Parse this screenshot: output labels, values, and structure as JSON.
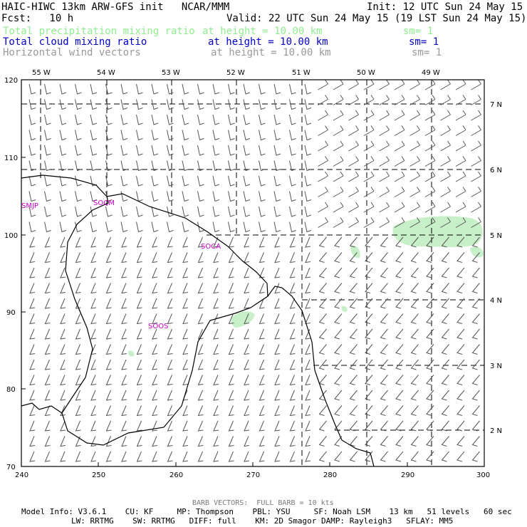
{
  "header": {
    "title": "HAIC-HIWC 13km ARW-GFS init   NCAR/MMM",
    "init": "Init: 12 UTC Sun 24 May 15",
    "fcst": "Fcst:   10 h",
    "valid": "Valid: 22 UTC Sun 24 May 15 (19 LST Sun 24 May 15)",
    "fields": [
      {
        "name": "Total precipitation mixing ratio",
        "height": "at height = 10.00 km",
        "sm": "sm= 1",
        "color": "#90ee90"
      },
      {
        "name": "Total cloud mixing ratio",
        "height": "at height = 10.00 km",
        "sm": "sm= 1",
        "color": "#0000cc"
      },
      {
        "name": "Horizontal wind vectors",
        "height": "at height = 10.00 km",
        "sm": "sm= 1",
        "color": "#999999"
      }
    ]
  },
  "map": {
    "grid_x_labels": [
      "240",
      "250",
      "260",
      "270",
      "280",
      "290",
      "300"
    ],
    "grid_y_labels": [
      "70",
      "80",
      "90",
      "100",
      "110",
      "120"
    ],
    "lon_labels": [
      "55 W",
      "54 W",
      "53 W",
      "52 W",
      "51 W",
      "50 W",
      "49 W"
    ],
    "lat_labels": [
      "2 N",
      "3 N",
      "4 N",
      "5 N",
      "6 N",
      "7 N"
    ],
    "stations": [
      "SMJP",
      "SOCM",
      "SOCA",
      "SOOS"
    ],
    "precip_color": "#c8f0c8",
    "coast_color": "#000000"
  },
  "footer": {
    "barb_note": "BARB VECTORS:  FULL BARB = 10 kts",
    "model_line1": "Model Info: V3.6.1    CU: KF     MP: Thompson    PBL: YSU     SF: Noah LSM    13 km   51 levels   60 sec",
    "model_line2": "LW: RRTMG    SW: RRTMG   DIFF: full    KM: 2D Smagor DAMP: Rayleigh3   SFLAY: MM5"
  }
}
